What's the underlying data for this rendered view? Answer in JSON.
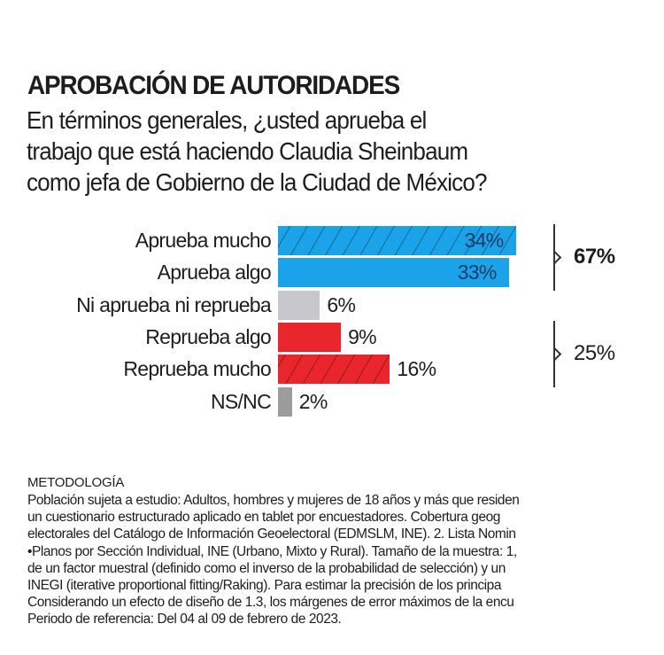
{
  "chart_data": {
    "type": "bar",
    "orientation": "horizontal",
    "title": "APROBACIÓN DE AUTORIDADES",
    "subtitle_lines": [
      "En términos generales, ¿usted aprueba el",
      "trabajo que está haciendo Claudia Sheinbaum",
      "como jefa de Gobierno de la Ciudad de México?"
    ],
    "categories": [
      "Aprueba mucho",
      "Aprueba algo",
      "Ni aprueba ni reprueba",
      "Reprueba algo",
      "Reprueba mucho",
      "NS/NC"
    ],
    "values": [
      34,
      33,
      6,
      9,
      16,
      2
    ],
    "value_labels": [
      "34%",
      "33%",
      "6%",
      "9%",
      "16%",
      "2%"
    ],
    "bar_colors": [
      "#1aa3e8",
      "#1aa3e8",
      "#c8c8cc",
      "#e8262b",
      "#e8262b",
      "#9c9c9e"
    ],
    "hatched": [
      true,
      false,
      false,
      false,
      true,
      false
    ],
    "groups": [
      {
        "label": "67%",
        "members": [
          "Aprueba mucho",
          "Aprueba algo"
        ],
        "bold": true
      },
      {
        "label": "25%",
        "members": [
          "Reprueba algo",
          "Reprueba mucho"
        ],
        "bold": false
      }
    ],
    "grid": false
  },
  "methodology": {
    "heading": "METODOLOGÍA",
    "lines": [
      "Población sujeta a estudio: Adultos, hombres y mujeres de 18 años y más que residen",
      "un cuestionario estructurado aplicado en tablet por encuestadores. Cobertura geog",
      "electorales del Catálogo de Información Geoelectoral (EDMSLM, INE). 2. Lista Nomin",
      "•Planos por Sección Individual, INE (Urbano, Mixto y Rural). Tamaño de la muestra: 1,",
      "de un factor muestral (definido como el inverso de la probabilidad de selección) y un",
      "INEGI (iterative proportional fitting/Raking). Para estimar la precisión de los principa",
      "Considerando un efecto de diseño de 1.3, los márgenes de error máximos de la encu",
      "Periodo de referencia: Del 04 al 09 de febrero de 2023."
    ]
  }
}
